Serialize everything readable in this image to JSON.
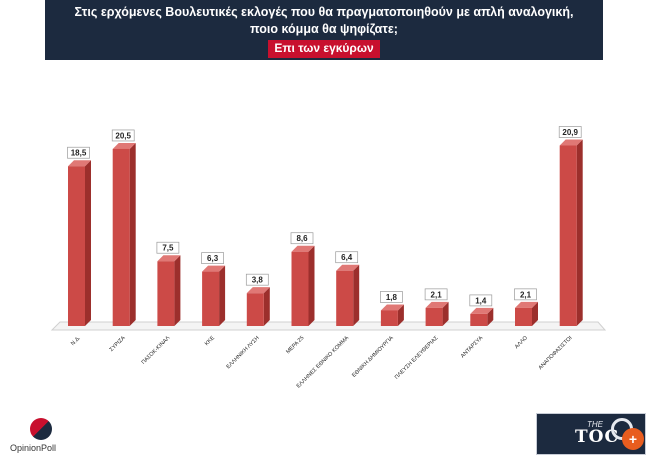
{
  "header": {
    "question_line1": "Στις ερχόμενες Βουλευτικές εκλογές που θα πραγματοποιηθούν με απλή αναλογική,",
    "question_line2": "ποιο κόμμα θα ψηφίζατε;",
    "subtitle": "Επι των εγκύρων"
  },
  "chart_data": {
    "type": "bar",
    "categories": [
      "Ν.Δ.",
      "ΣΥΡΙΖΑ",
      "ΠΑΣΟΚ-ΚΙΝΑΛ",
      "ΚΚΕ",
      "ΕΛΛΗΝΙΚΗ ΛΥΣΗ",
      "ΜΕΡΑ 25",
      "ΕΛΛΗΝΕΣ ΕΘΝΙΚΟ ΚΟΜΜΑ",
      "ΕΘΝΙΚΗ ΔΗΜΙΟΥΡΓΙΑ",
      "ΠΛΕΥΣΗ ΕΛΕΥΘΕΡΙΑΣ",
      "ΑΝΤΑΡΣΥΑ",
      "ΑΛΛΟ",
      "ΑΝΑΠΟΦΑΣΙΣΤΟΙ"
    ],
    "values": [
      18.5,
      20.5,
      7.5,
      6.3,
      3.8,
      8.6,
      6.4,
      1.8,
      2.1,
      1.4,
      2.1,
      20.9
    ],
    "value_labels": [
      "18,5",
      "20,5",
      "7,5",
      "6,3",
      "3,8",
      "8,6",
      "6,4",
      "1,8",
      "2,1",
      "1,4",
      "2,1",
      "20,9"
    ],
    "ylim": [
      0,
      22
    ],
    "bar_color": "#cc4a47",
    "bar_side_color": "#9c2f2c",
    "legend": "none",
    "grid": false
  },
  "logos": {
    "left_text": "OpinionPoll",
    "right_small": "THE",
    "right_big": "TOC"
  },
  "zoom_button": "+"
}
